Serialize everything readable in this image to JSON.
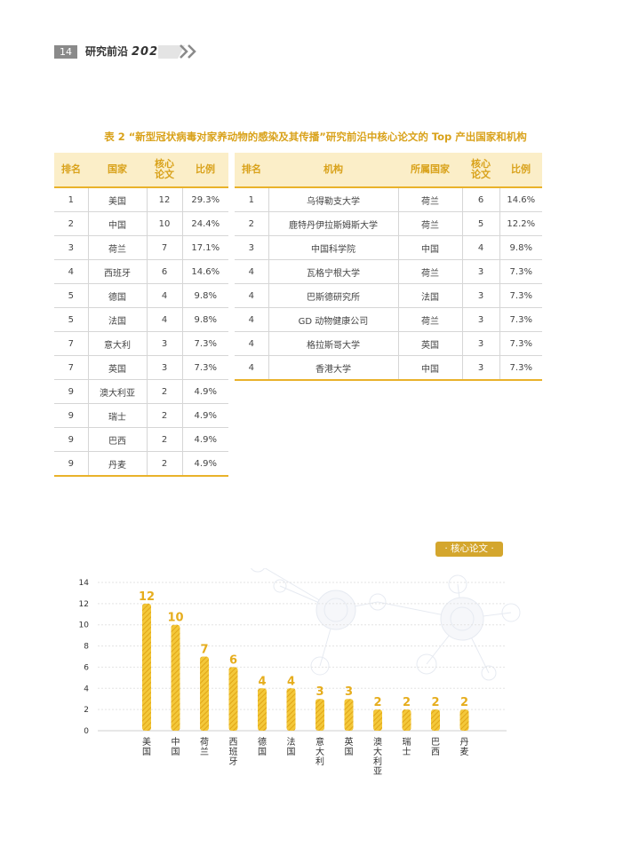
{
  "header": {
    "page_number": "14",
    "title": "研究前沿",
    "year": "2022"
  },
  "caption": "表 2 “新型冠状病毒对家养动物的感染及其传播”研究前沿中核心论文的 Top 产出国家和机构",
  "country_table": {
    "headers": [
      "排名",
      "国家",
      "核心论文",
      "比例"
    ],
    "rows": [
      [
        "1",
        "美国",
        "12",
        "29.3%"
      ],
      [
        "2",
        "中国",
        "10",
        "24.4%"
      ],
      [
        "3",
        "荷兰",
        "7",
        "17.1%"
      ],
      [
        "4",
        "西班牙",
        "6",
        "14.6%"
      ],
      [
        "5",
        "德国",
        "4",
        "9.8%"
      ],
      [
        "5",
        "法国",
        "4",
        "9.8%"
      ],
      [
        "7",
        "意大利",
        "3",
        "7.3%"
      ],
      [
        "7",
        "英国",
        "3",
        "7.3%"
      ],
      [
        "9",
        "澳大利亚",
        "2",
        "4.9%"
      ],
      [
        "9",
        "瑞士",
        "2",
        "4.9%"
      ],
      [
        "9",
        "巴西",
        "2",
        "4.9%"
      ],
      [
        "9",
        "丹麦",
        "2",
        "4.9%"
      ]
    ]
  },
  "institution_table": {
    "headers": [
      "排名",
      "机构",
      "所属国家",
      "核心论文",
      "比例"
    ],
    "rows": [
      [
        "1",
        "乌得勒支大学",
        "荷兰",
        "6",
        "14.6%"
      ],
      [
        "2",
        "鹿特丹伊拉斯姆斯大学",
        "荷兰",
        "5",
        "12.2%"
      ],
      [
        "3",
        "中国科学院",
        "中国",
        "4",
        "9.8%"
      ],
      [
        "4",
        "瓦格宁根大学",
        "荷兰",
        "3",
        "7.3%"
      ],
      [
        "4",
        "巴斯德研究所",
        "法国",
        "3",
        "7.3%"
      ],
      [
        "4",
        "GD 动物健康公司",
        "荷兰",
        "3",
        "7.3%"
      ],
      [
        "4",
        "格拉斯哥大学",
        "英国",
        "3",
        "7.3%"
      ],
      [
        "4",
        "香港大学",
        "中国",
        "3",
        "7.3%"
      ]
    ]
  },
  "chart_tag": "· 核心论文 ·",
  "chart_data": {
    "type": "bar",
    "title": "",
    "xlabel": "",
    "ylabel": "",
    "categories": [
      "美国",
      "中国",
      "荷兰",
      "西班牙",
      "德国",
      "法国",
      "意大利",
      "英国",
      "澳大利亚",
      "瑞士",
      "巴西",
      "丹麦"
    ],
    "values": [
      12,
      10,
      7,
      6,
      4,
      4,
      3,
      3,
      2,
      2,
      2,
      2
    ],
    "ylim": [
      0,
      14
    ],
    "yticks": [
      0,
      2,
      4,
      6,
      8,
      10,
      12,
      14
    ],
    "bar_color": "#e6ad1d",
    "grid": true
  }
}
